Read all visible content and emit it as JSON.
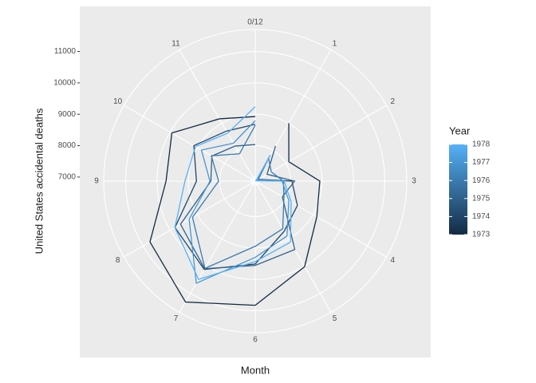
{
  "chart_data": {
    "type": "polar-line",
    "x_label": "Month",
    "y_label": "United States accidental deaths",
    "legend_title": "Year",
    "x": [
      1,
      2,
      3,
      4,
      5,
      6,
      7,
      8,
      9,
      10,
      11,
      12
    ],
    "xlim": [
      0,
      12
    ],
    "xticks": [
      {
        "value": 0,
        "label": "0/12"
      },
      1,
      2,
      3,
      4,
      5,
      6,
      7,
      8,
      9,
      10,
      11
    ],
    "ylim": [
      6870,
      11700
    ],
    "yticks": [
      7000,
      8000,
      9000,
      10000,
      11000
    ],
    "grid": true,
    "legend_position": "right",
    "series": [
      {
        "name": "1973",
        "color": "#132B43",
        "values": [
          9007,
          8106,
          8928,
          9137,
          10017,
          10826,
          11317,
          10744,
          9713,
          9938,
          9161,
          8927
        ]
      },
      {
        "name": "1974",
        "color": "#204667",
        "values": [
          7750,
          6981,
          8038,
          8422,
          8714,
          9512,
          10120,
          9823,
          8743,
          9129,
          8710,
          8680
        ]
      },
      {
        "name": "1975",
        "color": "#2E618B",
        "values": [
          8162,
          7306,
          8124,
          7870,
          9387,
          9556,
          10093,
          9620,
          8285,
          8466,
          8160,
          8034
        ]
      },
      {
        "name": "1976",
        "color": "#3B7BAF",
        "values": [
          7717,
          7461,
          7767,
          7925,
          8623,
          8945,
          10078,
          9179,
          8037,
          8488,
          7874,
          8647
        ]
      },
      {
        "name": "1977",
        "color": "#4896D3",
        "values": [
          7792,
          6957,
          7726,
          8106,
          8890,
          9299,
          10625,
          9302,
          8314,
          8850,
          8265,
          8796
        ]
      },
      {
        "name": "1978",
        "color": "#56B1F7",
        "values": [
          7836,
          6892,
          7791,
          8192,
          9115,
          9434,
          10484,
          9827,
          9110,
          9070,
          8633,
          9240
        ]
      }
    ]
  }
}
